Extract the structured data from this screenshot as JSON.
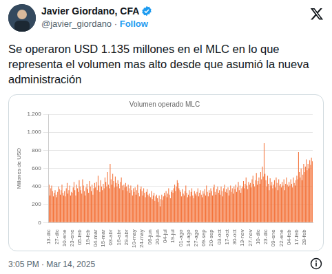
{
  "tweet": {
    "author": "Javier Giordano, CFA",
    "handle": "@javier_giordano",
    "separator": "·",
    "follow": "Follow",
    "text": "Se operaron USD 1.135 millones en el MLC en lo que representa el volumen mas alto desde que asumió la nueva administración",
    "timestamp": "3:05 PM · Mar 14, 2025"
  },
  "chart_data": {
    "type": "bar",
    "title": "Volumen operado MLC",
    "y_label": "Millones de USD",
    "color": "#f4743b",
    "grid": true,
    "ylim": [
      0,
      1200
    ],
    "yticks": [
      0,
      200,
      400,
      600,
      800,
      {
        "value": 1000,
        "label": "1.000"
      },
      {
        "value": 1200,
        "label": "1.200"
      }
    ],
    "categories": [
      "13-dic",
      null,
      null,
      null,
      null,
      null,
      null,
      null,
      null,
      "27-dic",
      null,
      null,
      null,
      null,
      null,
      null,
      null,
      null,
      "10-ene",
      null,
      null,
      null,
      null,
      null,
      null,
      null,
      null,
      "23-ene",
      null,
      null,
      null,
      null,
      null,
      null,
      null,
      null,
      "05-feb",
      null,
      null,
      null,
      null,
      null,
      null,
      null,
      null,
      "19-feb",
      null,
      null,
      null,
      null,
      null,
      null,
      null,
      null,
      "04-mar",
      null,
      null,
      null,
      null,
      null,
      null,
      null,
      null,
      "15-mar",
      null,
      null,
      null,
      null,
      null,
      null,
      null,
      null,
      "03-abr",
      null,
      null,
      null,
      null,
      null,
      null,
      null,
      null,
      "16-abr",
      null,
      null,
      null,
      null,
      null,
      null,
      null,
      null,
      "29-abr",
      null,
      null,
      null,
      null,
      null,
      null,
      null,
      null,
      "10-may",
      null,
      null,
      null,
      null,
      null,
      null,
      null,
      null,
      "24-may",
      null,
      null,
      null,
      null,
      null,
      null,
      null,
      null,
      "06-jun",
      null,
      null,
      null,
      null,
      null,
      null,
      null,
      null,
      "20-jun",
      null,
      null,
      null,
      null,
      null,
      null,
      null,
      null,
      "04-jul",
      null,
      null,
      null,
      null,
      null,
      null,
      null,
      null,
      "19-jul",
      null,
      null,
      null,
      null,
      null,
      null,
      null,
      null,
      "01-ago",
      null,
      null,
      null,
      null,
      null,
      null,
      null,
      null,
      "14-ago",
      null,
      null,
      null,
      null,
      null,
      null,
      null,
      null,
      "27-ago",
      null,
      null,
      null,
      null,
      null,
      null,
      null,
      null,
      "09-sep",
      null,
      null,
      null,
      null,
      null,
      null,
      null,
      null,
      "20-sep",
      null,
      null,
      null,
      null,
      null,
      null,
      null,
      null,
      "03-oct",
      null,
      null,
      null,
      null,
      null,
      null,
      null,
      null,
      "17-oct",
      null,
      null,
      null,
      null,
      null,
      null,
      null,
      null,
      "30-oct",
      null,
      null,
      null,
      null,
      null,
      null,
      null,
      null,
      "13-nov",
      null,
      null,
      null,
      null,
      null,
      null,
      null,
      null,
      "27-nov",
      null,
      null,
      null,
      null,
      null,
      null,
      null,
      null,
      "10-dic",
      null,
      null,
      null,
      null,
      null,
      null,
      null,
      null,
      "23-dic",
      null,
      null,
      null,
      null,
      null,
      null,
      null,
      null,
      "09-ene",
      null,
      null,
      null,
      null,
      null,
      null,
      null,
      null,
      "22-ene",
      null,
      null,
      null,
      null,
      null,
      null,
      null,
      null,
      "04-feb",
      null,
      null,
      null,
      null,
      null,
      null,
      null,
      null,
      "17-feb",
      null,
      null,
      null,
      null,
      null,
      null,
      null,
      null,
      "28-feb",
      null,
      null,
      null,
      null,
      null,
      null,
      null,
      null,
      null
    ],
    "values": [
      420,
      300,
      380,
      410,
      350,
      290,
      330,
      360,
      310,
      280,
      340,
      400,
      370,
      310,
      360,
      420,
      330,
      300,
      350,
      290,
      380,
      440,
      320,
      360,
      410,
      300,
      340,
      330,
      390,
      450,
      360,
      300,
      420,
      380,
      340,
      470,
      400,
      360,
      320,
      480,
      410,
      350,
      300,
      390,
      430,
      370,
      330,
      460,
      400,
      350,
      420,
      310,
      380,
      440,
      390,
      450,
      360,
      520,
      410,
      340,
      470,
      400,
      360,
      430,
      380,
      500,
      450,
      400,
      560,
      420,
      380,
      650,
      480,
      420,
      540,
      460,
      390,
      510,
      440,
      400,
      470,
      430,
      380,
      450,
      500,
      410,
      360,
      420,
      390,
      440,
      400,
      350,
      420,
      380,
      330,
      410,
      360,
      300,
      380,
      340,
      390,
      310,
      360,
      420,
      330,
      290,
      370,
      400,
      350,
      300,
      380,
      330,
      280,
      340,
      370,
      310,
      290,
      320,
      280,
      350,
      260,
      300,
      330,
      240,
      290,
      310,
      270,
      230,
      300,
      180,
      260,
      310,
      250,
      290,
      330,
      300,
      350,
      280,
      320,
      380,
      310,
      270,
      340,
      360,
      330,
      380,
      420,
      350,
      400,
      470,
      440,
      380,
      360,
      340,
      290,
      370,
      320,
      300,
      350,
      410,
      330,
      280,
      310,
      360,
      290,
      340,
      380,
      300,
      270,
      350,
      320,
      300,
      340,
      380,
      290,
      330,
      360,
      310,
      280,
      350,
      320,
      370,
      300,
      410,
      340,
      290,
      360,
      330,
      380,
      350,
      300,
      390,
      420,
      340,
      310,
      370,
      400,
      330,
      360,
      310,
      400,
      350,
      290,
      380,
      420,
      340,
      370,
      330,
      390,
      300,
      360,
      410,
      340,
      380,
      320,
      400,
      370,
      420,
      340,
      390,
      450,
      360,
      410,
      330,
      380,
      400,
      460,
      380,
      430,
      500,
      410,
      370,
      450,
      420,
      440,
      390,
      480,
      520,
      430,
      400,
      470,
      550,
      420,
      460,
      500,
      430,
      560,
      480,
      620,
      510,
      880,
      540,
      470,
      400,
      520,
      430,
      360,
      490,
      410,
      450,
      380,
      420,
      470,
      390,
      500,
      440,
      360,
      480,
      410,
      430,
      390,
      450,
      410,
      480,
      360,
      430,
      500,
      420,
      400,
      450,
      410,
      480,
      430,
      390,
      500,
      440,
      410,
      470,
      520,
      480,
      780,
      560,
      500,
      600,
      470,
      530,
      650,
      560,
      620,
      700,
      580,
      650,
      600,
      690,
      640,
      720,
      680
    ]
  }
}
